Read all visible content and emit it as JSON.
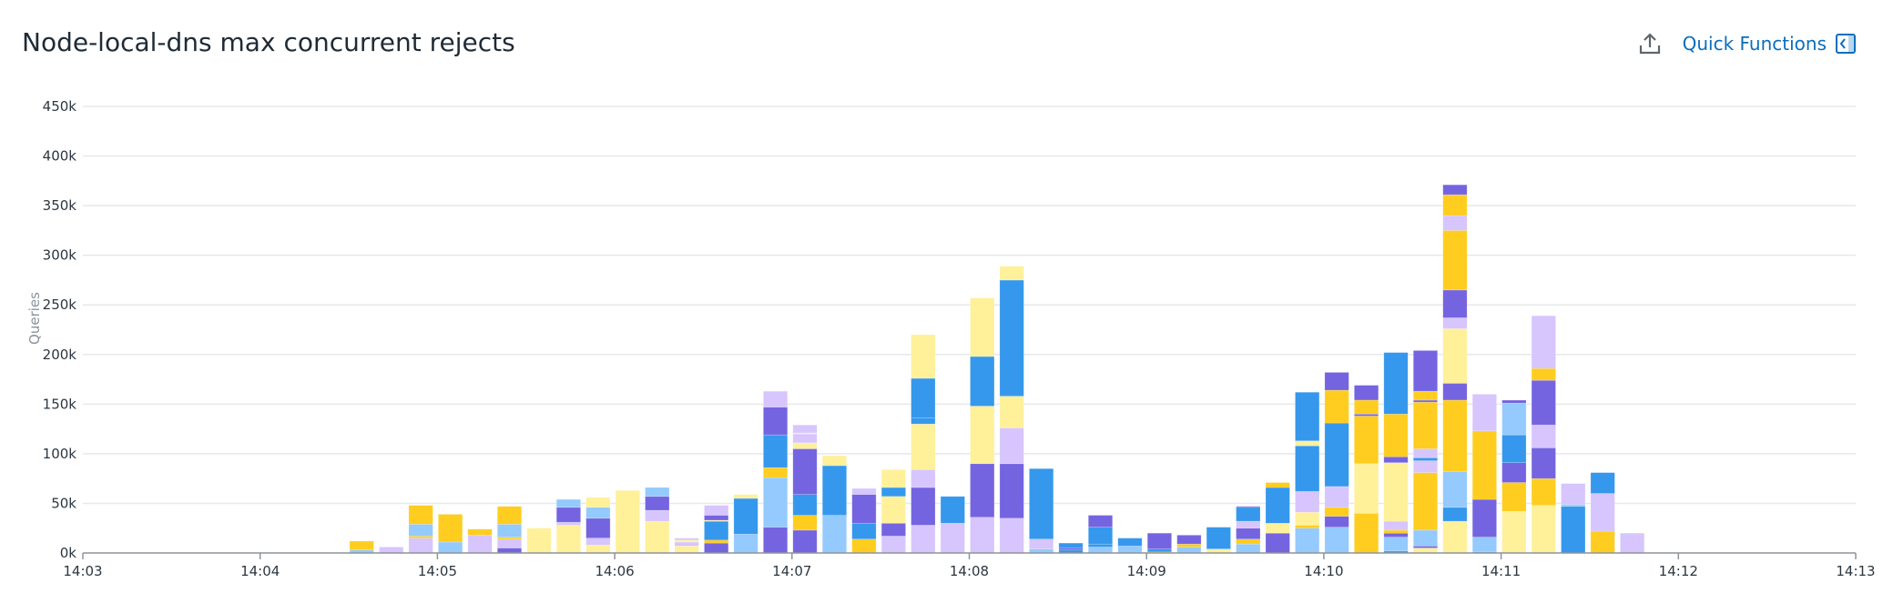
{
  "header": {
    "title": "Node-local-dns max concurrent rejects",
    "export_icon": "export-upload-icon",
    "quick_functions_label": "Quick Functions",
    "quick_functions_icon": "panel-collapse-icon"
  },
  "chart_data": {
    "type": "bar",
    "stacked": true,
    "title": "Node-local-dns max concurrent rejects",
    "ylabel": "Queries",
    "xlabel": "",
    "ylim": [
      0,
      450000
    ],
    "yticks": [
      "0k",
      "50k",
      "100k",
      "150k",
      "200k",
      "250k",
      "300k",
      "350k",
      "400k",
      "450k"
    ],
    "xlim": [
      "14:03",
      "14:13"
    ],
    "xticks": [
      "14:03",
      "14:04",
      "14:05",
      "14:06",
      "14:07",
      "14:08",
      "14:09",
      "14:10",
      "14:11",
      "14:12",
      "14:13"
    ],
    "bucket_seconds": 10,
    "grid": "horizontal",
    "legend": "none",
    "colors": {
      "lb": "#94cafd",
      "b": "#3598ec",
      "p": "#7564e0",
      "l": "#d7c5fd",
      "ly": "#fff09a",
      "y": "#fecd1f"
    },
    "bars": [
      {
        "t": "14:04:30",
        "seg": [
          [
            "lb",
            3
          ],
          [
            "y",
            9
          ]
        ]
      },
      {
        "t": "14:04:40",
        "seg": [
          [
            "l",
            6
          ]
        ]
      },
      {
        "t": "14:04:50",
        "seg": [
          [
            "l",
            15
          ],
          [
            "y",
            2
          ],
          [
            "lb",
            12
          ],
          [
            "y",
            19
          ]
        ]
      },
      {
        "t": "14:05:00",
        "seg": [
          [
            "lb",
            11
          ],
          [
            "y",
            28
          ]
        ]
      },
      {
        "t": "14:05:10",
        "seg": [
          [
            "l",
            18
          ],
          [
            "y",
            6
          ]
        ]
      },
      {
        "t": "14:05:20",
        "seg": [
          [
            "p",
            5
          ],
          [
            "l",
            9
          ],
          [
            "y",
            2
          ],
          [
            "lb",
            13
          ],
          [
            "y",
            18
          ]
        ]
      },
      {
        "t": "14:05:30",
        "seg": [
          [
            "ly",
            25
          ]
        ]
      },
      {
        "t": "14:05:40",
        "seg": [
          [
            "ly",
            28
          ],
          [
            "l",
            3
          ],
          [
            "p",
            15
          ],
          [
            "lb",
            8
          ]
        ]
      },
      {
        "t": "14:05:50",
        "seg": [
          [
            "ly",
            8
          ],
          [
            "l",
            7
          ],
          [
            "p",
            20
          ],
          [
            "lb",
            11
          ],
          [
            "ly",
            10
          ]
        ]
      },
      {
        "t": "14:06:00",
        "seg": [
          [
            "ly",
            63
          ]
        ]
      },
      {
        "t": "14:06:10",
        "seg": [
          [
            "ly",
            32
          ],
          [
            "l",
            11
          ],
          [
            "p",
            14
          ],
          [
            "lb",
            9
          ]
        ]
      },
      {
        "t": "14:06:20",
        "seg": [
          [
            "ly",
            7
          ],
          [
            "l",
            4
          ],
          [
            "ly",
            2
          ],
          [
            "l",
            2
          ]
        ]
      },
      {
        "t": "14:06:30",
        "seg": [
          [
            "p",
            10
          ],
          [
            "y",
            3
          ],
          [
            "b",
            19
          ],
          [
            "ly",
            1
          ],
          [
            "p",
            5
          ],
          [
            "l",
            10
          ]
        ]
      },
      {
        "t": "14:06:40",
        "seg": [
          [
            "lb",
            19
          ],
          [
            "b",
            36
          ],
          [
            "ly",
            4
          ]
        ]
      },
      {
        "t": "14:06:50",
        "seg": [
          [
            "p",
            26
          ],
          [
            "lb",
            50
          ],
          [
            "y",
            10
          ],
          [
            "b",
            33
          ],
          [
            "p",
            28
          ],
          [
            "l",
            16
          ]
        ]
      },
      {
        "t": "14:07:00",
        "seg": [
          [
            "p",
            23
          ],
          [
            "y",
            15
          ],
          [
            "b",
            21
          ],
          [
            "p",
            46
          ],
          [
            "ly",
            6
          ],
          [
            "l",
            9
          ],
          [
            "ly",
            1
          ],
          [
            "l",
            8
          ]
        ]
      },
      {
        "t": "14:07:10",
        "seg": [
          [
            "lb",
            38
          ],
          [
            "b",
            50
          ],
          [
            "ly",
            10
          ]
        ]
      },
      {
        "t": "14:07:20",
        "seg": [
          [
            "y",
            14
          ],
          [
            "b",
            16
          ],
          [
            "p",
            29
          ],
          [
            "l",
            6
          ]
        ]
      },
      {
        "t": "14:07:30",
        "seg": [
          [
            "l",
            17
          ],
          [
            "p",
            13
          ],
          [
            "ly",
            27
          ],
          [
            "b",
            9
          ],
          [
            "ly",
            18
          ]
        ]
      },
      {
        "t": "14:07:40",
        "seg": [
          [
            "l",
            28
          ],
          [
            "p",
            38
          ],
          [
            "l",
            18
          ],
          [
            "ly",
            46
          ],
          [
            "b",
            6
          ],
          [
            "b",
            40
          ],
          [
            "ly",
            44
          ]
        ]
      },
      {
        "t": "14:07:50",
        "seg": [
          [
            "l",
            30
          ],
          [
            "b",
            27
          ]
        ]
      },
      {
        "t": "14:08:00",
        "seg": [
          [
            "l",
            36
          ],
          [
            "p",
            54
          ],
          [
            "ly",
            58
          ],
          [
            "b",
            50
          ],
          [
            "ly",
            59
          ]
        ]
      },
      {
        "t": "14:08:10",
        "seg": [
          [
            "l",
            35
          ],
          [
            "p",
            55
          ],
          [
            "l",
            36
          ],
          [
            "ly",
            32
          ],
          [
            "b",
            117
          ],
          [
            "ly",
            14
          ]
        ]
      },
      {
        "t": "14:08:20",
        "seg": [
          [
            "lb",
            4
          ],
          [
            "l",
            10
          ],
          [
            "b",
            71
          ]
        ]
      },
      {
        "t": "14:08:30",
        "seg": [
          [
            "b",
            3
          ],
          [
            "p",
            2
          ],
          [
            "b",
            5
          ]
        ]
      },
      {
        "t": "14:08:40",
        "seg": [
          [
            "lb",
            6
          ],
          [
            "b",
            3
          ],
          [
            "b",
            17
          ],
          [
            "p",
            12
          ]
        ]
      },
      {
        "t": "14:08:50",
        "seg": [
          [
            "lb",
            7
          ],
          [
            "b",
            8
          ]
        ]
      },
      {
        "t": "14:09:00",
        "seg": [
          [
            "y",
            1
          ],
          [
            "b",
            3
          ],
          [
            "p",
            16
          ]
        ]
      },
      {
        "t": "14:09:10",
        "seg": [
          [
            "lb",
            6
          ],
          [
            "y",
            3
          ],
          [
            "p",
            9
          ]
        ]
      },
      {
        "t": "14:09:20",
        "seg": [
          [
            "ly",
            4
          ],
          [
            "b",
            22
          ]
        ]
      },
      {
        "t": "14:09:30",
        "seg": [
          [
            "lb",
            9
          ],
          [
            "y",
            5
          ],
          [
            "p",
            11
          ],
          [
            "l",
            7
          ],
          [
            "b",
            14
          ],
          [
            "p",
            1
          ]
        ]
      },
      {
        "t": "14:09:40",
        "seg": [
          [
            "p",
            20
          ],
          [
            "ly",
            10
          ],
          [
            "b",
            36
          ],
          [
            "y",
            5
          ]
        ]
      },
      {
        "t": "14:09:50",
        "seg": [
          [
            "lb",
            25
          ],
          [
            "y",
            3
          ],
          [
            "ly",
            13
          ],
          [
            "l",
            21
          ],
          [
            "b",
            46
          ],
          [
            "ly",
            5
          ],
          [
            "b",
            49
          ]
        ]
      },
      {
        "t": "14:10:00",
        "seg": [
          [
            "lb",
            26
          ],
          [
            "p",
            11
          ],
          [
            "y",
            9
          ],
          [
            "l",
            21
          ],
          [
            "b",
            64
          ],
          [
            "y",
            33
          ],
          [
            "p",
            18
          ]
        ]
      },
      {
        "t": "14:10:10",
        "seg": [
          [
            "y",
            40
          ],
          [
            "ly",
            50
          ],
          [
            "y",
            48
          ],
          [
            "p",
            2
          ],
          [
            "y",
            14
          ],
          [
            "p",
            15
          ]
        ]
      },
      {
        "t": "14:10:20",
        "seg": [
          [
            "b",
            2
          ],
          [
            "lb",
            14
          ],
          [
            "p",
            4
          ],
          [
            "y",
            3
          ],
          [
            "l",
            9
          ],
          [
            "ly",
            59
          ],
          [
            "p",
            6
          ],
          [
            "y",
            43
          ],
          [
            "b",
            62
          ]
        ]
      },
      {
        "t": "14:10:30",
        "seg": [
          [
            "ly",
            5
          ],
          [
            "p",
            2
          ],
          [
            "lb",
            16
          ],
          [
            "y",
            58
          ],
          [
            "l",
            12
          ],
          [
            "b",
            3
          ],
          [
            "l",
            9
          ],
          [
            "y",
            47
          ],
          [
            "p",
            2
          ],
          [
            "y",
            9
          ],
          [
            "p",
            41
          ]
        ]
      },
      {
        "t": "14:10:40",
        "seg": [
          [
            "ly",
            32
          ],
          [
            "b",
            14
          ],
          [
            "lb",
            36
          ],
          [
            "y",
            72
          ],
          [
            "p",
            17
          ],
          [
            "ly",
            55
          ],
          [
            "l",
            11
          ],
          [
            "p",
            28
          ],
          [
            "y",
            60
          ],
          [
            "l",
            15
          ],
          [
            "y",
            21
          ],
          [
            "p",
            10
          ]
        ]
      },
      {
        "t": "14:10:50",
        "seg": [
          [
            "b",
            1
          ],
          [
            "lb",
            15
          ],
          [
            "p",
            38
          ],
          [
            "y",
            69
          ],
          [
            "l",
            37
          ]
        ]
      },
      {
        "t": "14:11:00",
        "seg": [
          [
            "ly",
            42
          ],
          [
            "y",
            29
          ],
          [
            "p",
            20
          ],
          [
            "b",
            28
          ],
          [
            "lb",
            32
          ],
          [
            "p",
            3
          ]
        ]
      },
      {
        "t": "14:11:10",
        "seg": [
          [
            "ly",
            48
          ],
          [
            "y",
            27
          ],
          [
            "p",
            31
          ],
          [
            "l",
            23
          ],
          [
            "p",
            45
          ],
          [
            "y",
            12
          ],
          [
            "l",
            53
          ]
        ]
      },
      {
        "t": "14:11:20",
        "seg": [
          [
            "b",
            47
          ],
          [
            "lb",
            2
          ],
          [
            "l",
            21
          ]
        ]
      },
      {
        "t": "14:11:30",
        "seg": [
          [
            "y",
            22
          ],
          [
            "l",
            38
          ],
          [
            "b",
            21
          ]
        ]
      },
      {
        "t": "14:11:40",
        "seg": [
          [
            "l",
            20
          ]
        ]
      }
    ],
    "value_unit": "k"
  }
}
